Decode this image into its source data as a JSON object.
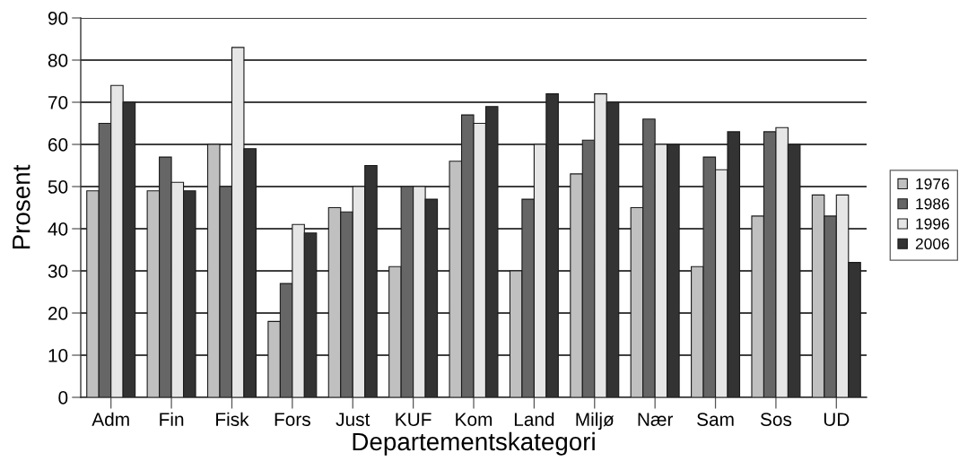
{
  "chart_data": {
    "type": "bar",
    "xlabel": "Departementskategori",
    "ylabel": "Prosent",
    "categories": [
      "Adm",
      "Fin",
      "Fisk",
      "Fors",
      "Just",
      "KUF",
      "Kom",
      "Land",
      "Miljø",
      "Nær",
      "Sam",
      "Sos",
      "UD"
    ],
    "series": [
      {
        "name": "1976",
        "color": "#c0c0c0",
        "values": [
          49,
          49,
          60,
          18,
          45,
          31,
          56,
          30,
          53,
          45,
          31,
          43,
          48
        ]
      },
      {
        "name": "1986",
        "color": "#666666",
        "values": [
          65,
          57,
          50,
          27,
          44,
          50,
          67,
          47,
          61,
          66,
          57,
          63,
          43
        ]
      },
      {
        "name": "1996",
        "color": "#e6e6e6",
        "values": [
          74,
          51,
          83,
          41,
          50,
          50,
          65,
          60,
          72,
          60,
          54,
          64,
          48
        ]
      },
      {
        "name": "2006",
        "color": "#333333",
        "values": [
          70,
          49,
          59,
          39,
          55,
          47,
          69,
          72,
          70,
          60,
          63,
          60,
          32
        ]
      }
    ],
    "ylim": [
      0,
      90
    ],
    "yticks": [
      0,
      10,
      20,
      30,
      40,
      50,
      60,
      70,
      80,
      90
    ],
    "grid": "y",
    "legend": "right"
  }
}
